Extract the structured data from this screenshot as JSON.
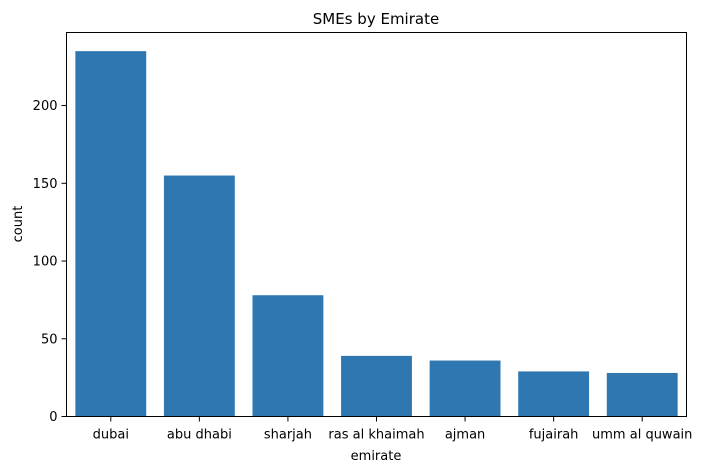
{
  "chart_data": {
    "type": "bar",
    "title": "SMEs by Emirate",
    "xlabel": "emirate",
    "ylabel": "count",
    "categories": [
      "dubai",
      "abu dhabi",
      "sharjah",
      "ras al khaimah",
      "ajman",
      "fujairah",
      "umm al quwain"
    ],
    "values": [
      235,
      155,
      78,
      39,
      36,
      29,
      28
    ],
    "ylim": [
      0,
      247
    ],
    "yticks": [
      0,
      50,
      100,
      150,
      200
    ],
    "grid": false,
    "bar_color": "#2e77b0"
  }
}
